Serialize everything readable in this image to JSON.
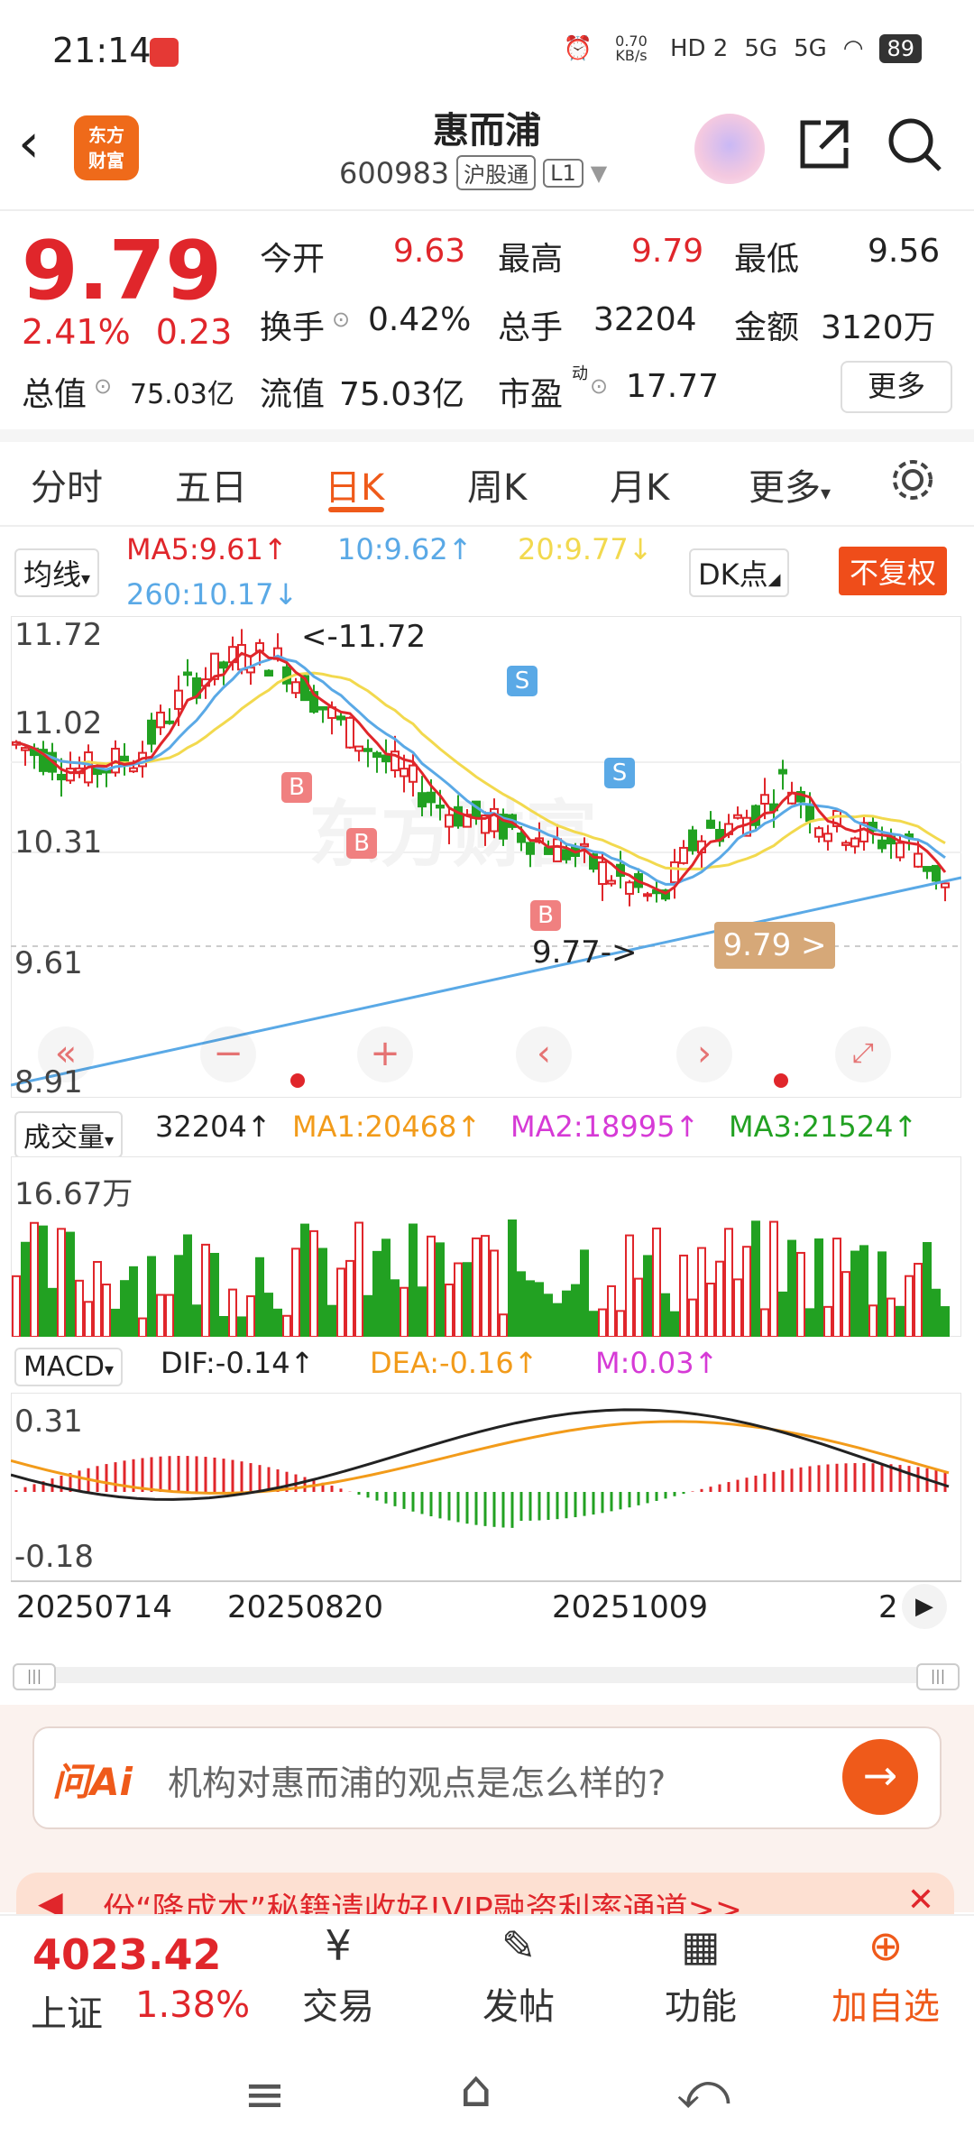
{
  "status_bar": {
    "time": "21:14",
    "net_speed": "0.70 KB/s",
    "hd": "HD 2",
    "sig1": "5G",
    "sig2": "5G",
    "battery": "89"
  },
  "header": {
    "logo_line1": "东方",
    "logo_line2": "财富",
    "stock_name": "惠而浦",
    "stock_code": "600983",
    "market_tag": "沪股通",
    "level_tag": "L1"
  },
  "quote": {
    "price": "9.79",
    "change_pct": "2.41%",
    "change": "0.23",
    "open_label": "今开",
    "open": "9.63",
    "high_label": "最高",
    "high": "9.79",
    "low_label": "最低",
    "low": "9.56",
    "turnover_label": "换手",
    "turnover": "0.42%",
    "volume_label": "总手",
    "volume": "32204",
    "amount_label": "金额",
    "amount": "3120万",
    "mktcap_label": "总值",
    "mktcap": "75.03亿",
    "float_label": "流值",
    "float": "75.03亿",
    "pe_label": "市盈",
    "pe_sup": "动",
    "pe": "17.77",
    "more": "更多"
  },
  "tabs": [
    "分时",
    "五日",
    "日K",
    "周K",
    "月K",
    "更多"
  ],
  "active_tab": "日K",
  "kline": {
    "indicator": "均线",
    "ma5": "MA5:9.61↑",
    "ma10": "10:9.62↑",
    "ma20": "20:9.77↓",
    "ma260": "260:10.17↓",
    "dk": "DK点",
    "fuquan": "不复权",
    "y_ticks": [
      "11.72",
      "11.02",
      "10.31",
      "9.61",
      "8.91"
    ],
    "high_note": "<-11.72",
    "low_note": "9.77->",
    "current": "9.79 >",
    "watermark": "东方财富",
    "colors": {
      "up": "#e0262b",
      "down": "#22a122",
      "ma5": "#e0262b",
      "ma10": "#5aa9e6",
      "ma20": "#f2d94e",
      "ma260": "#5aa9e6"
    }
  },
  "volume": {
    "label": "成交量",
    "value": "32204↑",
    "ma1": "MA1:20468↑",
    "ma2": "MA2:18995↑",
    "ma3": "MA3:21524↑",
    "y_top": "16.67万"
  },
  "macd": {
    "label": "MACD",
    "dif": "DIF:-0.14↑",
    "dea": "DEA:-0.16↑",
    "m": "M:0.03↑",
    "y_top": "0.31",
    "y_bottom": "-0.18"
  },
  "dates": [
    "20250714",
    "20250820",
    "20251009",
    "2"
  ],
  "ai_bar": {
    "brand": "问Ai",
    "prompt": "机构对惠而浦的观点是怎么样的?"
  },
  "banner": {
    "text": "份“降成本”秘籍请收好!VIP融资利率通道>>"
  },
  "bottom_nav": {
    "index_value": "4023.42",
    "index_name": "上证",
    "index_change": "1.38%",
    "trade": "交易",
    "post": "发帖",
    "func": "功能",
    "add": "加自选"
  },
  "chart_data": {
    "type": "candlestick",
    "title": "惠而浦 日K",
    "y_ticks": [
      11.72,
      11.02,
      10.31,
      9.61,
      8.91
    ],
    "ylim": [
      8.91,
      11.72
    ],
    "x_labels": [
      "20250714",
      "20250820",
      "20251009"
    ],
    "annotations": [
      {
        "label": "<-11.72",
        "value": 11.72
      },
      {
        "label": "9.77->",
        "value": 9.77
      },
      {
        "label": "9.79 >",
        "value": 9.79
      }
    ],
    "legend": [
      "MA5:9.61",
      "10:9.62",
      "20:9.77",
      "260:10.17"
    ]
  }
}
